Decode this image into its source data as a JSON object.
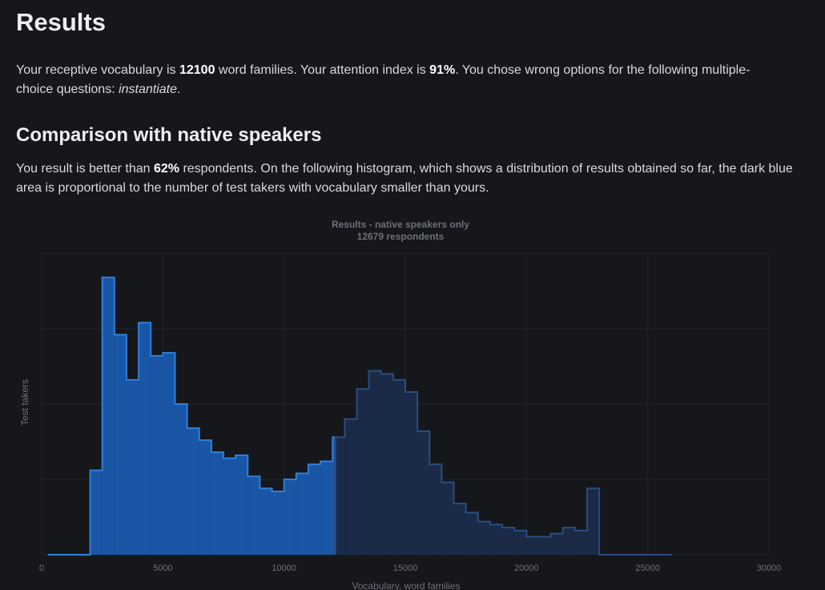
{
  "page": {
    "title": "Results",
    "summary": {
      "prefix": "Your receptive vocabulary is ",
      "vocabulary": "12100",
      "mid1": " word families. Your attention index is ",
      "attention": "91%",
      "mid2": ". You chose wrong options for the following multiple-choice questions: ",
      "wrong_words": "instantiate",
      "suffix": "."
    },
    "comparison": {
      "heading": "Comparison with native speakers",
      "prefix": "You result is better than ",
      "percent": "62%",
      "suffix": " respondents. On the following histogram, which shows a distribution of results obtained so far, the dark blue area is proportional to the number of test takers with vocabulary smaller than yours."
    }
  },
  "chart_data": {
    "type": "area",
    "title": "Results - native speakers only",
    "subtitle": "12679 respondents",
    "xlabel": "Vocabulary, word families",
    "ylabel": "Test takers",
    "xlim": [
      0,
      30000
    ],
    "ylim": [
      0,
      100
    ],
    "xticks": [
      0,
      5000,
      10000,
      15000,
      20000,
      25000,
      30000
    ],
    "grid": true,
    "highlight_threshold": 12100,
    "colors": {
      "highlight_fill": "#1a56a6",
      "highlight_stroke": "#2f7fd8",
      "rest_fill": "#1b2b47",
      "rest_stroke": "#2a4d82",
      "grid": "#23252b",
      "text": "#6d7079"
    },
    "bins": [
      {
        "x": 250,
        "y": 0
      },
      {
        "x": 750,
        "y": 0
      },
      {
        "x": 1250,
        "y": 0
      },
      {
        "x": 1750,
        "y": 0
      },
      {
        "x": 2250,
        "y": 28
      },
      {
        "x": 2750,
        "y": 92
      },
      {
        "x": 3250,
        "y": 73
      },
      {
        "x": 3750,
        "y": 58
      },
      {
        "x": 4250,
        "y": 77
      },
      {
        "x": 4750,
        "y": 66
      },
      {
        "x": 5250,
        "y": 67
      },
      {
        "x": 5750,
        "y": 50
      },
      {
        "x": 6250,
        "y": 42
      },
      {
        "x": 6750,
        "y": 38
      },
      {
        "x": 7250,
        "y": 34
      },
      {
        "x": 7750,
        "y": 32
      },
      {
        "x": 8250,
        "y": 33
      },
      {
        "x": 8750,
        "y": 26
      },
      {
        "x": 9250,
        "y": 22
      },
      {
        "x": 9750,
        "y": 21
      },
      {
        "x": 10250,
        "y": 25
      },
      {
        "x": 10750,
        "y": 27
      },
      {
        "x": 11250,
        "y": 30
      },
      {
        "x": 11750,
        "y": 31
      },
      {
        "x": 12250,
        "y": 39
      },
      {
        "x": 12750,
        "y": 45
      },
      {
        "x": 13250,
        "y": 55
      },
      {
        "x": 13750,
        "y": 61
      },
      {
        "x": 14250,
        "y": 60
      },
      {
        "x": 14750,
        "y": 58
      },
      {
        "x": 15250,
        "y": 54
      },
      {
        "x": 15750,
        "y": 41
      },
      {
        "x": 16250,
        "y": 30
      },
      {
        "x": 16750,
        "y": 24
      },
      {
        "x": 17250,
        "y": 17
      },
      {
        "x": 17750,
        "y": 14
      },
      {
        "x": 18250,
        "y": 11
      },
      {
        "x": 18750,
        "y": 10
      },
      {
        "x": 19250,
        "y": 9
      },
      {
        "x": 19750,
        "y": 8
      },
      {
        "x": 20250,
        "y": 6
      },
      {
        "x": 20750,
        "y": 6
      },
      {
        "x": 21250,
        "y": 7
      },
      {
        "x": 21750,
        "y": 9
      },
      {
        "x": 22250,
        "y": 8
      },
      {
        "x": 22750,
        "y": 22
      },
      {
        "x": 23250,
        "y": 0
      },
      {
        "x": 23750,
        "y": 0
      },
      {
        "x": 24250,
        "y": 0
      },
      {
        "x": 24750,
        "y": 0
      },
      {
        "x": 25250,
        "y": 0
      },
      {
        "x": 25750,
        "y": 0
      }
    ]
  }
}
